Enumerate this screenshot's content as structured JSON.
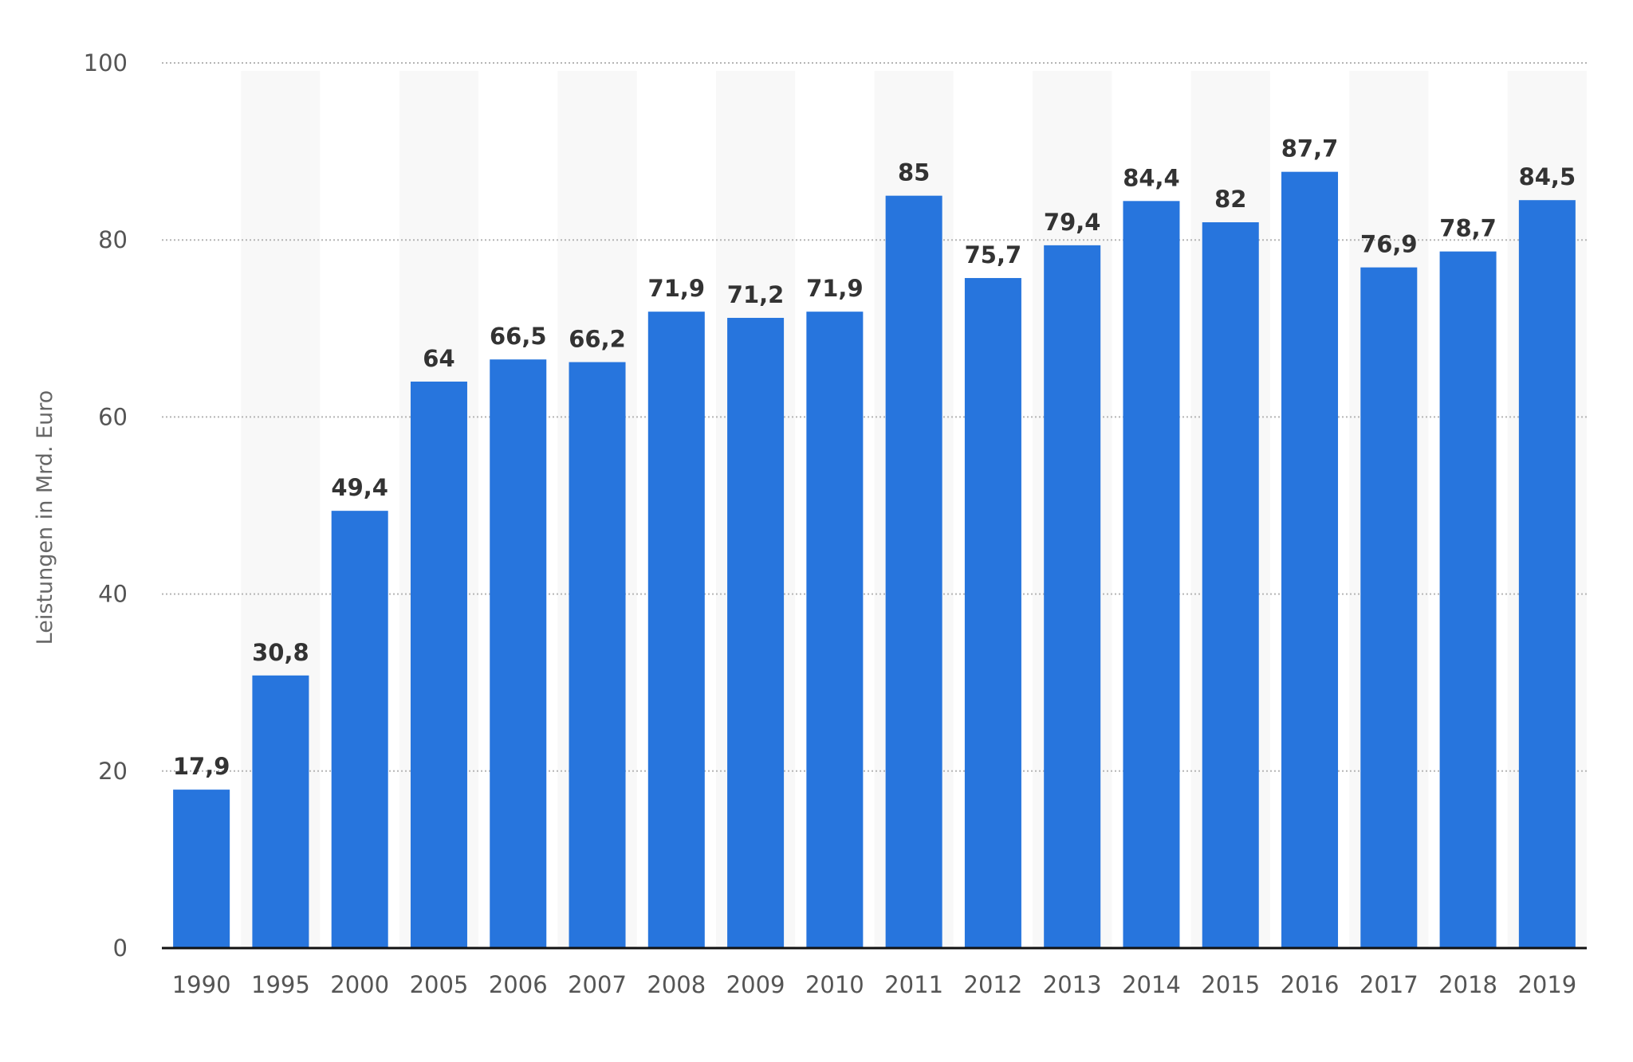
{
  "chart_data": {
    "type": "bar",
    "title": "",
    "xlabel": "",
    "ylabel": "Leistungen in Mrd. Euro",
    "ylim": [
      0,
      100
    ],
    "yticks": [
      0,
      20,
      40,
      60,
      80,
      100
    ],
    "grid": true,
    "legend": "none",
    "bar_color": "#2775dd",
    "band_color": "#f8f8f8",
    "categories": [
      "1990",
      "1995",
      "2000",
      "2005",
      "2006",
      "2007",
      "2008",
      "2009",
      "2010",
      "2011",
      "2012",
      "2013",
      "2014",
      "2015",
      "2016",
      "2017",
      "2018",
      "2019"
    ],
    "values": [
      17.9,
      30.8,
      49.4,
      64,
      66.5,
      66.2,
      71.9,
      71.2,
      71.9,
      85,
      75.7,
      79.4,
      84.4,
      82,
      87.7,
      76.9,
      78.7,
      84.5
    ],
    "value_labels": [
      "17,9",
      "30,8",
      "49,4",
      "64",
      "66,5",
      "66,2",
      "71,9",
      "71,2",
      "71,9",
      "85",
      "75,7",
      "79,4",
      "84,4",
      "82",
      "87,7",
      "76,9",
      "78,7",
      "84,5"
    ]
  }
}
